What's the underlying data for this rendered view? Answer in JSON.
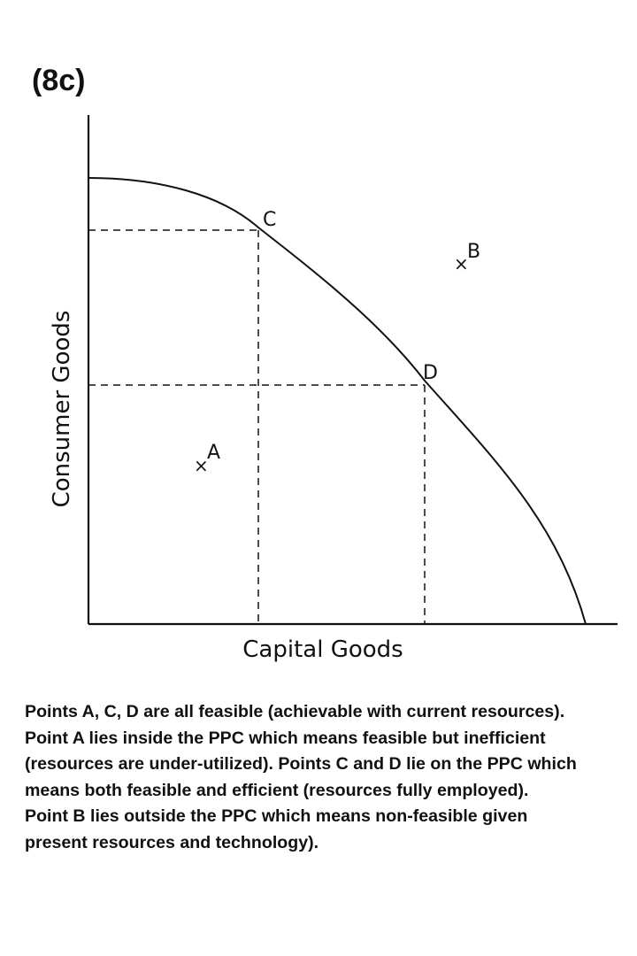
{
  "figure_label": "(8c)",
  "diagram": {
    "x_axis_label": "Capital Goods",
    "y_axis_label": "Consumer Goods",
    "points": [
      {
        "id": "A",
        "label": "A",
        "position": "inside"
      },
      {
        "id": "B",
        "label": "B",
        "position": "outside"
      },
      {
        "id": "C",
        "label": "C",
        "position": "on-curve"
      },
      {
        "id": "D",
        "label": "D",
        "position": "on-curve"
      }
    ],
    "marker_symbol": "×"
  },
  "explanation_lines": [
    "Points A, C, D are all feasible (achievable with current resources).",
    "Point A lies inside the PPC which means feasible but inefficient",
    "(resources are under-utilized). Points C and D lie on the PPC which",
    "means both feasible and efficient (resources fully employed).",
    "Point B lies outside the PPC which means non-feasible given",
    "present resources and technology)."
  ]
}
